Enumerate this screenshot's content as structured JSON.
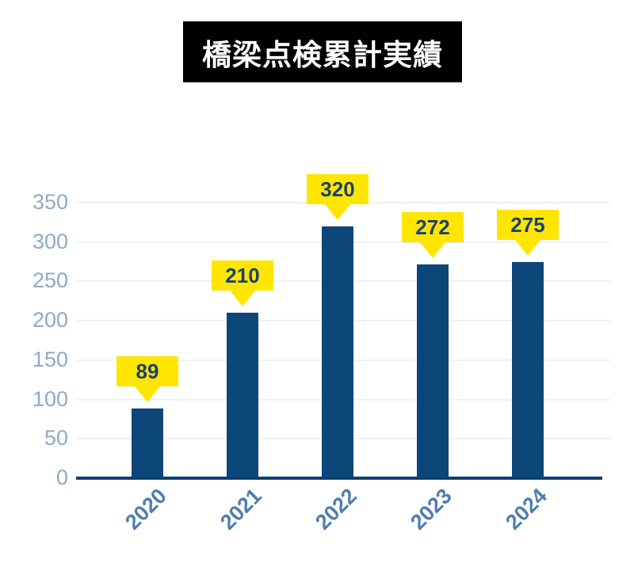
{
  "title": "橋梁点検累計実績",
  "chart_data": {
    "type": "bar",
    "title": "橋梁点検累計実績",
    "categories": [
      "2020",
      "2021",
      "2022",
      "2023",
      "2024"
    ],
    "values": [
      89,
      210,
      320,
      272,
      275
    ],
    "data_labels": [
      "89",
      "210",
      "320",
      "272",
      "275"
    ],
    "xlabel": "",
    "ylabel": "",
    "ylim": [
      0,
      350
    ],
    "yticks": [
      0,
      50,
      100,
      150,
      200,
      250,
      300,
      350
    ],
    "grid": true,
    "legend": false,
    "x_tick_rotation_deg": 45,
    "colors": {
      "bar": "#0d4679",
      "axis_line": "#0c3f70",
      "gridline": "#eef1f4",
      "y_tick_label": "#8fa9c9",
      "x_tick_label": "#4f7dad",
      "data_label_bg": "#ffe500",
      "data_label_text": "#1a4170",
      "title_bg": "#000000",
      "title_text": "#ffffff",
      "background": "#ffffff"
    }
  }
}
